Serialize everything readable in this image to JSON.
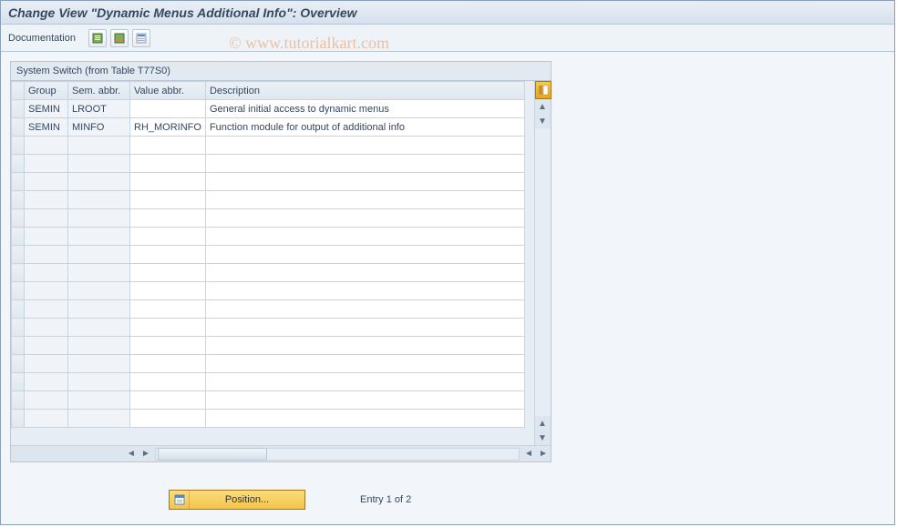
{
  "title": "Change View \"Dynamic Menus Additional Info\": Overview",
  "toolbar": {
    "documentation_label": "Documentation"
  },
  "panel": {
    "title": "System Switch (from Table T77S0)",
    "columns": {
      "group": "Group",
      "sem_abbr": "Sem. abbr.",
      "value_abbr": "Value abbr.",
      "description": "Description"
    },
    "col_widths": {
      "selector": 14,
      "group": 48,
      "sem_abbr": 68,
      "value_abbr": 76,
      "description": 350
    },
    "rows": [
      {
        "group": "SEMIN",
        "sem_abbr": "LROOT",
        "value_abbr": "",
        "description": "General initial access to dynamic menus"
      },
      {
        "group": "SEMIN",
        "sem_abbr": "MINFO",
        "value_abbr": "RH_MORINFO",
        "description": "Function module for output of additional info"
      }
    ],
    "empty_rows": 16
  },
  "footer": {
    "position_label": "Position...",
    "entry_text": "Entry 1 of 2"
  },
  "watermark": "© www.tutorialkart.com",
  "colors": {
    "panel_bg": "#e6edf5",
    "border": "#b8c6d6",
    "header_grad_top": "#e8eef5",
    "header_grad_bot": "#d7e1ec",
    "gold_grad_top": "#fddc7b",
    "gold_grad_bot": "#f3c44a",
    "text": "#34485f"
  }
}
